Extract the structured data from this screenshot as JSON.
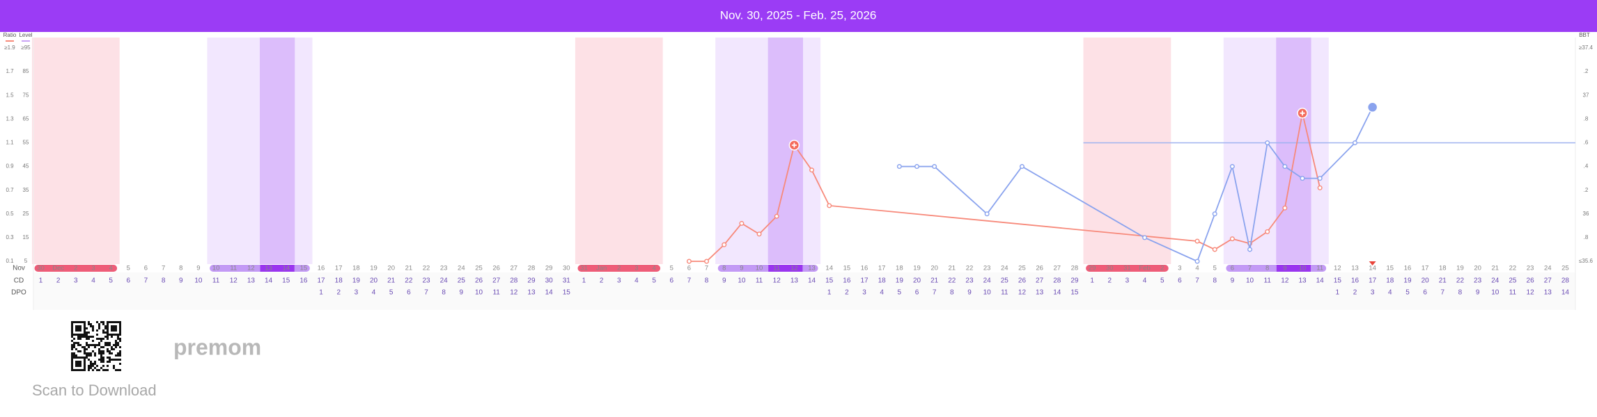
{
  "chart_data": {
    "type": "line",
    "title": "Nov. 30, 2025 - Feb. 25, 2026",
    "row_labels": [
      "Nov",
      "CD",
      "DPO"
    ],
    "x": [
      "30",
      "Dec",
      "2",
      "3",
      "4",
      "5",
      "6",
      "7",
      "8",
      "9",
      "10",
      "11",
      "12",
      "13",
      "14",
      "15",
      "16",
      "17",
      "18",
      "19",
      "20",
      "21",
      "22",
      "23",
      "24",
      "25",
      "26",
      "27",
      "28",
      "29",
      "30",
      "31",
      "Jan",
      "2",
      "3",
      "4",
      "5",
      "6",
      "7",
      "8",
      "9",
      "10",
      "11",
      "12",
      "13",
      "14",
      "15",
      "16",
      "17",
      "18",
      "19",
      "20",
      "21",
      "22",
      "23",
      "24",
      "25",
      "26",
      "27",
      "28",
      "29",
      "30",
      "31",
      "Feb",
      "2",
      "3",
      "4",
      "5",
      "6",
      "7",
      "8",
      "9",
      "10",
      "11",
      "12",
      "13",
      "14",
      "15",
      "16",
      "17",
      "18",
      "19",
      "20",
      "21",
      "22",
      "23",
      "24",
      "25"
    ],
    "cd": [
      1,
      2,
      3,
      4,
      5,
      6,
      7,
      8,
      9,
      10,
      11,
      12,
      13,
      14,
      15,
      16,
      17,
      18,
      19,
      20,
      21,
      22,
      23,
      24,
      25,
      26,
      27,
      28,
      29,
      30,
      31,
      1,
      2,
      3,
      4,
      5,
      6,
      7,
      8,
      9,
      10,
      11,
      12,
      13,
      14,
      15,
      16,
      17,
      18,
      19,
      20,
      21,
      22,
      23,
      24,
      25,
      26,
      27,
      28,
      29,
      1,
      2,
      3,
      4,
      5,
      6,
      7,
      8,
      9,
      10,
      11,
      12,
      13,
      14,
      15,
      16,
      17,
      18,
      19,
      20,
      21,
      22,
      23,
      24,
      25,
      26,
      27,
      28
    ],
    "dpo": [
      null,
      null,
      null,
      null,
      null,
      null,
      null,
      null,
      null,
      null,
      null,
      null,
      null,
      null,
      null,
      null,
      1,
      2,
      3,
      4,
      5,
      6,
      7,
      8,
      9,
      10,
      11,
      12,
      13,
      14,
      15,
      null,
      null,
      null,
      null,
      null,
      null,
      null,
      null,
      null,
      null,
      null,
      null,
      null,
      null,
      1,
      2,
      3,
      4,
      5,
      6,
      7,
      8,
      9,
      10,
      11,
      12,
      13,
      14,
      15,
      null,
      null,
      null,
      null,
      null,
      null,
      null,
      null,
      null,
      null,
      null,
      null,
      null,
      null,
      1,
      2,
      3,
      4,
      5,
      6,
      7,
      8,
      9,
      10,
      11,
      12,
      13,
      14
    ],
    "ylabel": "Ratio",
    "ylim": [
      0.1,
      1.9
    ],
    "yticks": [
      0.1,
      0.3,
      0.5,
      0.7,
      0.9,
      1.1,
      1.3,
      1.5,
      1.7,
      {
        "value": 1.9,
        "label": "≥1.9"
      }
    ],
    "level_label": "Level",
    "level_lim": [
      5,
      95
    ],
    "level_ticks": [
      5,
      15,
      25,
      35,
      45,
      55,
      65,
      75,
      85,
      {
        "value": 95,
        "label": "≥95"
      }
    ],
    "y2label": "BBT",
    "y2lim": [
      35.6,
      37.4
    ],
    "y2ticks": [
      {
        "value": 35.6,
        "label": "≤35.6"
      },
      {
        "value": 35.8,
        "label": ".8"
      },
      36,
      {
        "value": 36.2,
        "label": ".2"
      },
      {
        "value": 36.4,
        "label": ".4"
      },
      {
        "value": 36.6,
        "label": ".6"
      },
      {
        "value": 36.8,
        "label": ".8"
      },
      37,
      {
        "value": 37.2,
        "label": ".2"
      },
      {
        "value": 37.4,
        "label": "≥37.4"
      }
    ],
    "coverline": 36.6,
    "coverline_color": "#9fb3f0",
    "series": [
      {
        "color": "#f7897a",
        "axis": "y",
        "values": [
          null,
          null,
          null,
          null,
          null,
          null,
          null,
          null,
          null,
          null,
          null,
          null,
          null,
          null,
          null,
          null,
          null,
          null,
          null,
          null,
          null,
          null,
          null,
          null,
          null,
          null,
          null,
          null,
          null,
          null,
          null,
          null,
          null,
          null,
          null,
          null,
          null,
          0.1,
          0.1,
          0.24,
          0.42,
          0.33,
          0.48,
          1.08,
          0.87,
          0.57,
          null,
          null,
          null,
          null,
          null,
          null,
          null,
          null,
          null,
          null,
          null,
          null,
          null,
          null,
          null,
          null,
          null,
          null,
          null,
          null,
          0.27,
          0.2,
          0.29,
          0.25,
          0.35,
          0.55,
          1.35,
          0.72,
          null,
          null,
          null,
          null,
          null,
          null,
          null,
          null,
          null,
          null,
          null,
          null,
          null,
          null
        ]
      },
      {
        "color": "#8aa3ee",
        "axis": "y2",
        "values": [
          null,
          null,
          null,
          null,
          null,
          null,
          null,
          null,
          null,
          null,
          null,
          null,
          null,
          null,
          null,
          null,
          null,
          null,
          null,
          null,
          null,
          null,
          null,
          null,
          null,
          null,
          null,
          null,
          null,
          null,
          null,
          null,
          null,
          null,
          null,
          null,
          null,
          null,
          null,
          null,
          null,
          null,
          null,
          null,
          null,
          null,
          null,
          null,
          null,
          36.4,
          36.4,
          36.4,
          null,
          null,
          36,
          null,
          36.4,
          null,
          null,
          null,
          null,
          null,
          null,
          35.8,
          null,
          null,
          35.6,
          36,
          36.4,
          35.7,
          36.6,
          36.4,
          36.3,
          36.3,
          null,
          36.6,
          36.9,
          null,
          null,
          null,
          null,
          null,
          null,
          null,
          null,
          null,
          null,
          null
        ]
      }
    ]
  },
  "footer": {
    "brand": "premom",
    "caption": "Scan to Download"
  }
}
